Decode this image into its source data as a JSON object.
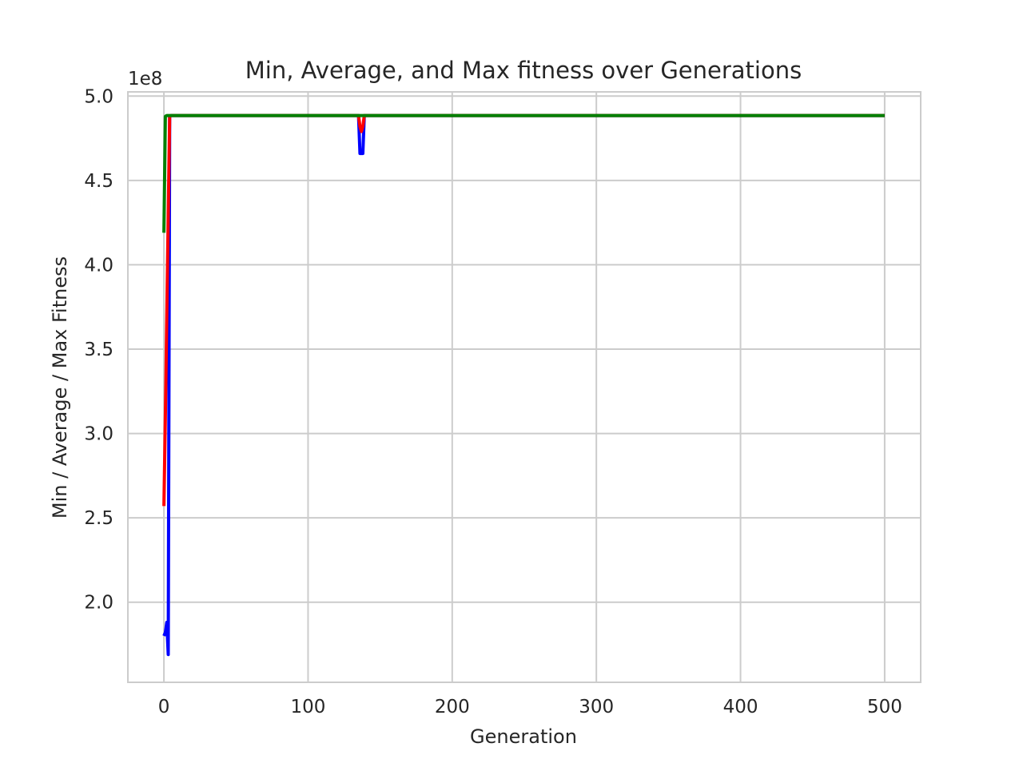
{
  "chart_data": {
    "type": "line",
    "title": "Min, Average, and Max fitness over Generations",
    "xlabel": "Generation",
    "ylabel": "Min / Average / Max Fitness",
    "y_offset_label": "1e8",
    "y_scale_multiplier": 100000000,
    "xlim": [
      -25,
      525
    ],
    "ylim": [
      1.525,
      5.025
    ],
    "x_ticks": [
      0,
      100,
      200,
      300,
      400,
      500
    ],
    "y_ticks": [
      2.0,
      2.5,
      3.0,
      3.5,
      4.0,
      4.5,
      5.0
    ],
    "x_tick_labels": [
      "0",
      "100",
      "200",
      "300",
      "400",
      "500"
    ],
    "y_tick_labels": [
      "2.0",
      "2.5",
      "3.0",
      "3.5",
      "4.0",
      "4.5",
      "5.0"
    ],
    "grid": true,
    "series": [
      {
        "color": "#0000ff",
        "x": [
          0,
          1,
          2,
          3,
          4,
          5,
          135,
          136,
          137,
          138,
          139,
          140,
          500
        ],
        "y": [
          1.8,
          1.82,
          1.88,
          1.69,
          4.88,
          4.885,
          4.885,
          4.66,
          4.66,
          4.66,
          4.885,
          4.885,
          4.885
        ]
      },
      {
        "color": "#ff0000",
        "x": [
          0,
          1,
          2,
          3,
          4,
          5,
          135,
          136,
          137,
          138,
          139,
          140,
          500
        ],
        "y": [
          2.57,
          3.1,
          3.7,
          4.3,
          4.88,
          4.885,
          4.885,
          4.82,
          4.79,
          4.82,
          4.885,
          4.885,
          4.885
        ]
      },
      {
        "color": "#008000",
        "x": [
          0,
          1,
          2,
          500
        ],
        "y": [
          4.19,
          4.88,
          4.885,
          4.885
        ]
      }
    ]
  }
}
